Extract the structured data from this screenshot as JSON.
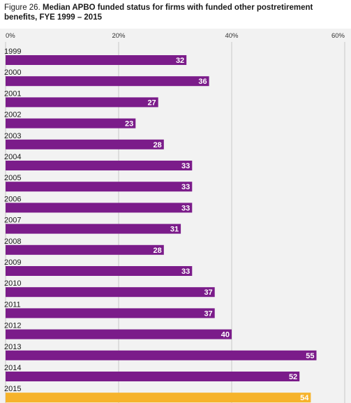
{
  "title": {
    "figure_number": "Figure 26.",
    "text": "Median APBO funded status for firms with funded other postretirement benefits, FYE 1999 – 2015"
  },
  "colors": {
    "primary_bar": "#7b1c8a",
    "highlight_bar": "#f6b32b",
    "background": "#f2f2f2",
    "gridline": "#c8c8c8"
  },
  "chart_data": {
    "type": "bar",
    "orientation": "horizontal",
    "categories": [
      "1999",
      "2000",
      "2001",
      "2002",
      "2003",
      "2004",
      "2005",
      "2006",
      "2007",
      "2008",
      "2009",
      "2010",
      "2011",
      "2012",
      "2013",
      "2014",
      "2015"
    ],
    "values": [
      32,
      36,
      27,
      23,
      28,
      33,
      33,
      33,
      31,
      28,
      33,
      37,
      37,
      40,
      55,
      52,
      54
    ],
    "highlight_category": "2015",
    "xlim": [
      0,
      60
    ],
    "xticks": [
      0,
      20,
      40,
      60
    ],
    "xtick_labels": [
      "0%",
      "20%",
      "40%",
      "60%"
    ],
    "grid": true,
    "xlabel": "",
    "ylabel": ""
  }
}
